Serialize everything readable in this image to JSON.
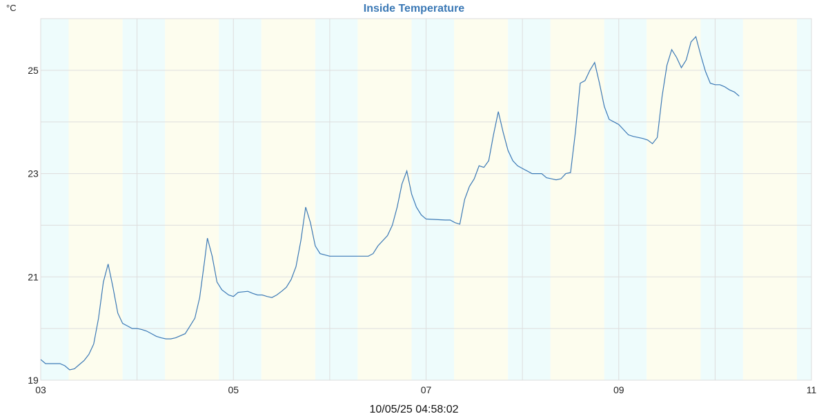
{
  "chart_data": {
    "type": "line",
    "title": "Inside Temperature",
    "unit_label": "°C",
    "footer": "10/05/25 04:58:02",
    "x_range": [
      3,
      11
    ],
    "y_range": [
      19,
      26
    ],
    "x_tick_labels": [
      "03",
      "05",
      "07",
      "09",
      "11"
    ],
    "x_tick_values": [
      3,
      5,
      7,
      9,
      11
    ],
    "y_tick_labels": [
      "19",
      "21",
      "23",
      "25"
    ],
    "y_tick_values": [
      19,
      21,
      23,
      25
    ],
    "grid": true,
    "colors": {
      "line": "#3a78b5",
      "title": "#3a78b5",
      "night_band": "#eefcfc",
      "day_band": "#fdfdee",
      "grid": "#dddddd"
    },
    "series": [
      {
        "x": [
          3.0,
          3.05,
          3.2,
          3.25,
          3.3,
          3.35,
          3.4,
          3.45,
          3.5,
          3.55,
          3.6,
          3.65,
          3.7,
          3.75,
          3.8,
          3.85,
          3.9,
          3.95,
          4.0,
          4.05,
          4.1,
          4.15,
          4.2,
          4.25,
          4.3,
          4.35,
          4.4,
          4.5,
          4.55,
          4.6,
          4.65,
          4.7,
          4.73,
          4.78,
          4.83,
          4.88,
          4.95,
          5.0,
          5.05,
          5.15,
          5.2,
          5.25,
          5.3,
          5.35,
          5.4,
          5.45,
          5.5,
          5.55,
          5.6,
          5.65,
          5.7,
          5.75,
          5.8,
          5.85,
          5.9,
          6.0,
          6.1,
          6.2,
          6.3,
          6.4,
          6.45,
          6.5,
          6.6,
          6.65,
          6.7,
          6.75,
          6.8,
          6.85,
          6.9,
          6.95,
          7.0,
          7.2,
          7.25,
          7.3,
          7.35,
          7.4,
          7.45,
          7.5,
          7.55,
          7.6,
          7.65,
          7.7,
          7.75,
          7.8,
          7.85,
          7.9,
          7.95,
          8.0,
          8.1,
          8.2,
          8.25,
          8.3,
          8.35,
          8.4,
          8.45,
          8.5,
          8.55,
          8.6,
          8.65,
          8.7,
          8.75,
          8.8,
          8.85,
          8.9,
          8.95,
          9.0,
          9.1,
          9.15,
          9.2,
          9.25,
          9.3,
          9.35,
          9.4,
          9.45,
          9.5,
          9.55,
          9.6,
          9.65,
          9.7,
          9.75,
          9.8,
          9.85,
          9.9,
          9.95,
          10.0,
          10.05,
          10.1,
          10.15,
          10.2,
          10.25
        ],
        "y": [
          19.4,
          19.32,
          19.32,
          19.28,
          19.2,
          19.22,
          19.3,
          19.38,
          19.5,
          19.7,
          20.2,
          20.9,
          21.25,
          20.8,
          20.3,
          20.1,
          20.05,
          20.0,
          20.0,
          19.98,
          19.95,
          19.9,
          19.85,
          19.82,
          19.8,
          19.8,
          19.82,
          19.9,
          20.05,
          20.2,
          20.6,
          21.3,
          21.75,
          21.4,
          20.9,
          20.75,
          20.65,
          20.62,
          20.7,
          20.72,
          20.68,
          20.65,
          20.65,
          20.62,
          20.6,
          20.65,
          20.72,
          20.8,
          20.95,
          21.2,
          21.7,
          22.35,
          22.05,
          21.6,
          21.45,
          21.4,
          21.4,
          21.4,
          21.4,
          21.4,
          21.45,
          21.6,
          21.8,
          22.0,
          22.35,
          22.8,
          23.05,
          22.6,
          22.35,
          22.2,
          22.12,
          22.1,
          22.1,
          22.05,
          22.02,
          22.5,
          22.75,
          22.9,
          23.15,
          23.12,
          23.25,
          23.75,
          24.2,
          23.8,
          23.45,
          23.25,
          23.15,
          23.1,
          23.0,
          23.0,
          22.92,
          22.9,
          22.88,
          22.9,
          23.0,
          23.02,
          23.8,
          24.75,
          24.8,
          25.0,
          25.15,
          24.75,
          24.3,
          24.05,
          24.0,
          23.95,
          23.75,
          23.72,
          23.7,
          23.68,
          23.65,
          23.58,
          23.7,
          24.5,
          25.1,
          25.4,
          25.25,
          25.05,
          25.2,
          25.55,
          25.65,
          25.3,
          24.98,
          24.75,
          24.72,
          24.72,
          24.68,
          24.62,
          24.58,
          24.5
        ]
      }
    ]
  }
}
